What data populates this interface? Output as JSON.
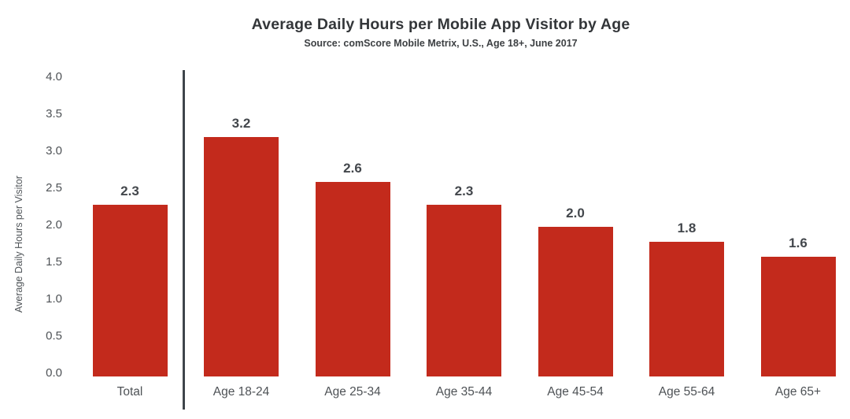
{
  "page": {
    "background": "#ffffff"
  },
  "chart_data": {
    "type": "bar",
    "title": "Average Daily Hours per Mobile App Visitor by Age",
    "subtitle": "Source: comScore Mobile Metrix, U.S., Age 18+, June 2017",
    "ylabel": "Average Daily Hours per Visitor",
    "xlabel": "",
    "categories": [
      "Total",
      "Age 18-24",
      "Age 25-34",
      "Age 35-44",
      "Age 45-54",
      "Age 55-64",
      "Age 65+"
    ],
    "values": [
      2.3,
      3.2,
      2.6,
      2.3,
      2.0,
      1.8,
      1.6
    ],
    "value_labels": [
      "2.3",
      "3.2",
      "2.6",
      "2.3",
      "2.0",
      "1.8",
      "1.6"
    ],
    "ylim": [
      0.0,
      4.0
    ],
    "yticks": [
      "4.0",
      "3.5",
      "3.0",
      "2.5",
      "2.0",
      "1.5",
      "1.0",
      "0.5",
      "0.0"
    ],
    "grid": false,
    "legend": "none",
    "bar_color": "#c32a1c",
    "separator_after_category": "Total"
  }
}
